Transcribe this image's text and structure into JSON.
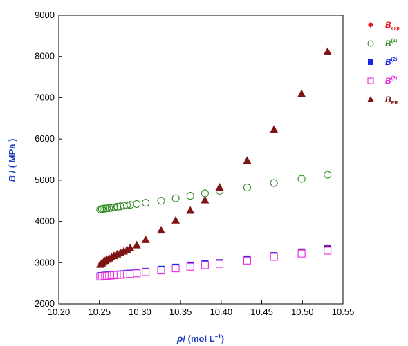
{
  "colors": {
    "exp": "#e8181c",
    "b1": "#2e8b22",
    "b2": "#1428e6",
    "b3": "#e826e0",
    "bpr": "#7f1414",
    "axis_title": "#1f3fbf"
  },
  "chart_data": {
    "type": "scatter",
    "xlabel_main": "ρ",
    "xlabel_rest": "/ (mol L",
    "xlabel_sup": "−1",
    "xlabel_end": ")",
    "ylabel_main": "B",
    "ylabel_rest": " / ( MPa )",
    "xlim": [
      10.2,
      10.55
    ],
    "ylim": [
      2000,
      9000
    ],
    "xticks": [
      10.2,
      10.25,
      10.3,
      10.35,
      10.4,
      10.45,
      10.5,
      10.55
    ],
    "xtick_labels": [
      "10.20",
      "10.25",
      "10.30",
      "10.35",
      "10.40",
      "10.45",
      "10.50",
      "10.55"
    ],
    "yticks": [
      2000,
      3000,
      4000,
      5000,
      6000,
      7000,
      8000,
      9000
    ],
    "ytick_labels": [
      "2000",
      "3000",
      "4000",
      "5000",
      "6000",
      "7000",
      "8000",
      "9000"
    ],
    "grid": false,
    "legend_position": "right",
    "series": [
      {
        "key": "exp",
        "name": "B",
        "sub": "exp",
        "sup": "",
        "marker": "diamond-filled",
        "x": [
          10.499,
          10.531
        ],
        "y": [
          3270,
          3350
        ]
      },
      {
        "key": "b1",
        "name": "B",
        "sub": "",
        "sup": "(1)",
        "marker": "circle-open",
        "x": [
          10.251,
          10.253,
          10.255,
          10.257,
          10.259,
          10.262,
          10.265,
          10.268,
          10.272,
          10.276,
          10.28,
          10.284,
          10.288,
          10.296,
          10.307,
          10.326,
          10.344,
          10.362,
          10.38,
          10.398,
          10.432,
          10.465,
          10.499,
          10.531
        ],
        "y": [
          4290,
          4300,
          4305,
          4310,
          4315,
          4320,
          4330,
          4340,
          4355,
          4365,
          4380,
          4390,
          4400,
          4420,
          4450,
          4500,
          4560,
          4620,
          4680,
          4740,
          4820,
          4930,
          5030,
          5130
        ]
      },
      {
        "key": "b2",
        "name": "B",
        "sub": "",
        "sup": "(2)",
        "marker": "square-filled",
        "x": [
          10.251,
          10.253,
          10.255,
          10.257,
          10.259,
          10.262,
          10.265,
          10.268,
          10.272,
          10.276,
          10.28,
          10.284,
          10.288,
          10.296,
          10.307,
          10.326,
          10.344,
          10.362,
          10.38,
          10.398,
          10.432,
          10.465,
          10.499,
          10.531
        ],
        "y": [
          2680,
          2685,
          2690,
          2695,
          2700,
          2705,
          2710,
          2715,
          2720,
          2725,
          2730,
          2740,
          2745,
          2760,
          2790,
          2840,
          2890,
          2940,
          2970,
          3000,
          3090,
          3170,
          3260,
          3340
        ]
      },
      {
        "key": "b3",
        "name": "B",
        "sub": "",
        "sup": "(3)",
        "marker": "square-open",
        "x": [
          10.251,
          10.253,
          10.255,
          10.257,
          10.259,
          10.262,
          10.265,
          10.268,
          10.272,
          10.276,
          10.28,
          10.284,
          10.288,
          10.296,
          10.307,
          10.326,
          10.344,
          10.362,
          10.38,
          10.398,
          10.432,
          10.465,
          10.499,
          10.531
        ],
        "y": [
          2660,
          2665,
          2670,
          2675,
          2680,
          2685,
          2690,
          2695,
          2700,
          2705,
          2710,
          2720,
          2725,
          2740,
          2770,
          2810,
          2860,
          2900,
          2940,
          2970,
          3050,
          3140,
          3220,
          3290
        ]
      },
      {
        "key": "bpr",
        "name": "B",
        "sub": "PR",
        "sup": "",
        "marker": "triangle-filled",
        "x": [
          10.251,
          10.253,
          10.255,
          10.257,
          10.259,
          10.262,
          10.265,
          10.268,
          10.272,
          10.276,
          10.28,
          10.284,
          10.288,
          10.296,
          10.307,
          10.326,
          10.344,
          10.362,
          10.38,
          10.398,
          10.432,
          10.465,
          10.499,
          10.531
        ],
        "y": [
          2960,
          2990,
          3020,
          3050,
          3080,
          3110,
          3140,
          3170,
          3210,
          3250,
          3280,
          3320,
          3360,
          3430,
          3560,
          3790,
          4030,
          4270,
          4520,
          4830,
          5480,
          6230,
          7100,
          8120
        ]
      }
    ]
  }
}
